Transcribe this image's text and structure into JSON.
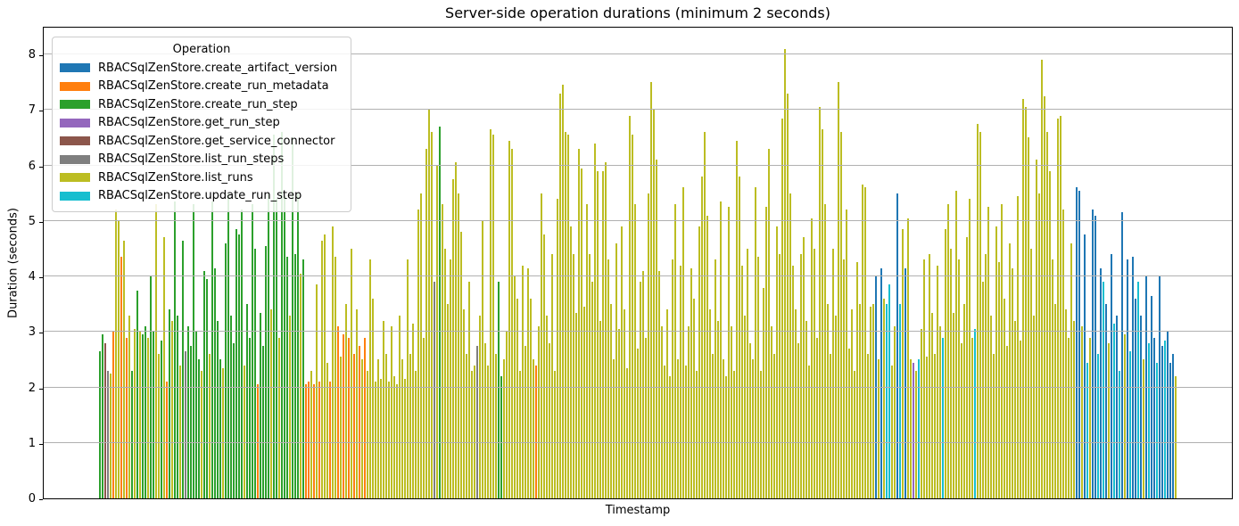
{
  "title": "Server-side operation durations (minimum 2 seconds)",
  "axes": {
    "xlabel": "Timestamp",
    "ylabel": "Duration (seconds)",
    "yticks": [
      "0",
      "1",
      "2",
      "3",
      "4",
      "5",
      "6",
      "7",
      "8"
    ]
  },
  "legend": {
    "title": "Operation",
    "entries": [
      {
        "label": "RBACSqlZenStore.create_artifact_version",
        "color": "#1f77b4"
      },
      {
        "label": "RBACSqlZenStore.create_run_metadata",
        "color": "#ff7f0e"
      },
      {
        "label": "RBACSqlZenStore.create_run_step",
        "color": "#2ca02c"
      },
      {
        "label": "RBACSqlZenStore.get_run_step",
        "color": "#9467bd"
      },
      {
        "label": "RBACSqlZenStore.get_service_connector",
        "color": "#8c564b"
      },
      {
        "label": "RBACSqlZenStore.list_run_steps",
        "color": "#7f7f7f"
      },
      {
        "label": "RBACSqlZenStore.list_runs",
        "color": "#bcbd22"
      },
      {
        "label": "RBACSqlZenStore.update_run_step",
        "color": "#17becf"
      }
    ]
  },
  "chart_data": {
    "type": "bar",
    "title": "Server-side operation durations (minimum 2 seconds)",
    "xlabel": "Timestamp",
    "ylabel": "Duration (seconds)",
    "ylim": [
      0,
      8.5
    ],
    "grid": "horizontal, drawn above bars",
    "legend_position": "upper left",
    "x_tick_labels": "none visible (timestamps hidden)",
    "operations": [
      "RBACSqlZenStore.create_artifact_version",
      "RBACSqlZenStore.create_run_metadata",
      "RBACSqlZenStore.create_run_step",
      "RBACSqlZenStore.get_run_step",
      "RBACSqlZenStore.get_service_connector",
      "RBACSqlZenStore.list_run_steps",
      "RBACSqlZenStore.list_runs",
      "RBACSqlZenStore.update_run_step"
    ],
    "colors": [
      "#1f77b4",
      "#ff7f0e",
      "#2ca02c",
      "#9467bd",
      "#8c564b",
      "#7f7f7f",
      "#bcbd22",
      "#17becf"
    ],
    "bars_format": "[operation_index, duration_seconds] per bar, left to right (durations estimated from pixels)",
    "bars": [
      [
        2,
        2.65
      ],
      [
        2,
        2.95
      ],
      [
        4,
        2.8
      ],
      [
        5,
        2.3
      ],
      [
        6,
        2.25
      ],
      [
        1,
        3.0
      ],
      [
        6,
        5.2
      ],
      [
        6,
        5.0
      ],
      [
        1,
        4.35
      ],
      [
        6,
        4.65
      ],
      [
        1,
        2.9
      ],
      [
        6,
        3.3
      ],
      [
        2,
        2.3
      ],
      [
        6,
        3.05
      ],
      [
        2,
        3.75
      ],
      [
        6,
        3.0
      ],
      [
        2,
        2.95
      ],
      [
        2,
        3.1
      ],
      [
        6,
        2.9
      ],
      [
        2,
        4.0
      ],
      [
        2,
        3.0
      ],
      [
        6,
        5.3
      ],
      [
        6,
        2.6
      ],
      [
        2,
        2.85
      ],
      [
        6,
        4.7
      ],
      [
        1,
        2.1
      ],
      [
        2,
        3.4
      ],
      [
        6,
        3.2
      ],
      [
        2,
        5.35
      ],
      [
        2,
        3.3
      ],
      [
        6,
        2.4
      ],
      [
        2,
        4.65
      ],
      [
        5,
        2.65
      ],
      [
        2,
        3.1
      ],
      [
        2,
        2.75
      ],
      [
        2,
        5.3
      ],
      [
        2,
        3.0
      ],
      [
        2,
        2.5
      ],
      [
        6,
        2.3
      ],
      [
        2,
        4.1
      ],
      [
        2,
        3.95
      ],
      [
        6,
        2.6
      ],
      [
        2,
        5.35
      ],
      [
        2,
        4.15
      ],
      [
        2,
        3.2
      ],
      [
        2,
        2.5
      ],
      [
        6,
        2.35
      ],
      [
        2,
        4.6
      ],
      [
        2,
        5.5
      ],
      [
        2,
        3.3
      ],
      [
        2,
        2.8
      ],
      [
        2,
        4.85
      ],
      [
        2,
        4.75
      ],
      [
        2,
        5.2
      ],
      [
        6,
        2.4
      ],
      [
        2,
        3.5
      ],
      [
        2,
        2.9
      ],
      [
        2,
        5.3
      ],
      [
        2,
        4.5
      ],
      [
        1,
        2.05
      ],
      [
        2,
        3.35
      ],
      [
        2,
        2.75
      ],
      [
        2,
        4.55
      ],
      [
        2,
        5.5
      ],
      [
        6,
        3.4
      ],
      [
        2,
        6.55
      ],
      [
        2,
        5.4
      ],
      [
        6,
        2.9
      ],
      [
        2,
        6.6
      ],
      [
        2,
        5.45
      ],
      [
        2,
        4.35
      ],
      [
        6,
        3.3
      ],
      [
        2,
        6.5
      ],
      [
        2,
        4.4
      ],
      [
        2,
        5.5
      ],
      [
        6,
        4.05
      ],
      [
        2,
        4.3
      ],
      [
        1,
        2.05
      ],
      [
        1,
        2.1
      ],
      [
        6,
        2.3
      ],
      [
        1,
        2.05
      ],
      [
        6,
        3.85
      ],
      [
        1,
        2.1
      ],
      [
        6,
        4.65
      ],
      [
        6,
        4.75
      ],
      [
        6,
        2.45
      ],
      [
        1,
        2.1
      ],
      [
        6,
        4.9
      ],
      [
        6,
        4.35
      ],
      [
        1,
        3.1
      ],
      [
        6,
        2.55
      ],
      [
        1,
        2.95
      ],
      [
        6,
        3.5
      ],
      [
        1,
        2.9
      ],
      [
        6,
        4.5
      ],
      [
        1,
        2.6
      ],
      [
        6,
        3.4
      ],
      [
        1,
        2.75
      ],
      [
        6,
        2.5
      ],
      [
        1,
        2.9
      ],
      [
        6,
        2.3
      ],
      [
        6,
        4.3
      ],
      [
        6,
        3.6
      ],
      [
        6,
        2.1
      ],
      [
        6,
        2.5
      ],
      [
        6,
        2.15
      ],
      [
        6,
        3.2
      ],
      [
        6,
        2.6
      ],
      [
        6,
        2.1
      ],
      [
        6,
        3.1
      ],
      [
        6,
        2.2
      ],
      [
        6,
        2.05
      ],
      [
        6,
        3.3
      ],
      [
        6,
        2.5
      ],
      [
        6,
        2.15
      ],
      [
        6,
        4.3
      ],
      [
        6,
        2.6
      ],
      [
        6,
        3.15
      ],
      [
        6,
        2.3
      ],
      [
        6,
        5.2
      ],
      [
        6,
        5.5
      ],
      [
        6,
        2.9
      ],
      [
        6,
        6.3
      ],
      [
        6,
        7.0
      ],
      [
        6,
        6.6
      ],
      [
        5,
        3.9
      ],
      [
        6,
        6.0
      ],
      [
        2,
        6.7
      ],
      [
        6,
        5.3
      ],
      [
        6,
        4.5
      ],
      [
        6,
        3.5
      ],
      [
        6,
        4.3
      ],
      [
        6,
        5.75
      ],
      [
        6,
        6.05
      ],
      [
        6,
        5.5
      ],
      [
        6,
        4.8
      ],
      [
        6,
        3.4
      ],
      [
        6,
        2.6
      ],
      [
        6,
        3.9
      ],
      [
        6,
        2.3
      ],
      [
        6,
        2.4
      ],
      [
        5,
        2.75
      ],
      [
        6,
        3.3
      ],
      [
        6,
        5.0
      ],
      [
        6,
        2.8
      ],
      [
        6,
        2.4
      ],
      [
        6,
        6.65
      ],
      [
        6,
        6.55
      ],
      [
        6,
        2.6
      ],
      [
        2,
        3.9
      ],
      [
        2,
        2.2
      ],
      [
        6,
        2.5
      ],
      [
        6,
        3.0
      ],
      [
        6,
        6.45
      ],
      [
        6,
        6.3
      ],
      [
        6,
        4.0
      ],
      [
        6,
        3.6
      ],
      [
        6,
        2.3
      ],
      [
        6,
        4.2
      ],
      [
        6,
        2.75
      ],
      [
        6,
        4.15
      ],
      [
        6,
        3.6
      ],
      [
        6,
        2.5
      ],
      [
        1,
        2.4
      ],
      [
        6,
        3.1
      ],
      [
        6,
        5.5
      ],
      [
        6,
        4.75
      ],
      [
        6,
        3.3
      ],
      [
        6,
        2.8
      ],
      [
        6,
        4.4
      ],
      [
        6,
        2.3
      ],
      [
        6,
        5.4
      ],
      [
        6,
        7.3
      ],
      [
        6,
        7.45
      ],
      [
        6,
        6.6
      ],
      [
        6,
        6.55
      ],
      [
        6,
        4.9
      ],
      [
        6,
        4.4
      ],
      [
        6,
        3.35
      ],
      [
        6,
        6.3
      ],
      [
        6,
        5.95
      ],
      [
        6,
        3.45
      ],
      [
        6,
        5.3
      ],
      [
        6,
        4.4
      ],
      [
        6,
        3.9
      ],
      [
        6,
        6.4
      ],
      [
        6,
        5.9
      ],
      [
        6,
        3.2
      ],
      [
        6,
        5.9
      ],
      [
        6,
        6.05
      ],
      [
        6,
        4.3
      ],
      [
        6,
        3.5
      ],
      [
        6,
        2.5
      ],
      [
        6,
        4.6
      ],
      [
        6,
        3.05
      ],
      [
        6,
        4.9
      ],
      [
        6,
        3.4
      ],
      [
        6,
        2.35
      ],
      [
        6,
        6.9
      ],
      [
        6,
        6.55
      ],
      [
        6,
        5.3
      ],
      [
        6,
        2.7
      ],
      [
        6,
        3.9
      ],
      [
        6,
        4.1
      ],
      [
        6,
        2.9
      ],
      [
        6,
        5.5
      ],
      [
        6,
        7.5
      ],
      [
        6,
        7.0
      ],
      [
        6,
        6.1
      ],
      [
        6,
        4.1
      ],
      [
        6,
        3.1
      ],
      [
        6,
        2.4
      ],
      [
        6,
        3.4
      ],
      [
        6,
        2.2
      ],
      [
        6,
        4.3
      ],
      [
        6,
        5.3
      ],
      [
        6,
        2.5
      ],
      [
        6,
        4.2
      ],
      [
        6,
        5.6
      ],
      [
        6,
        2.4
      ],
      [
        6,
        3.1
      ],
      [
        6,
        4.15
      ],
      [
        6,
        3.6
      ],
      [
        6,
        2.3
      ],
      [
        6,
        4.9
      ],
      [
        6,
        5.8
      ],
      [
        6,
        6.6
      ],
      [
        6,
        5.1
      ],
      [
        6,
        3.4
      ],
      [
        6,
        2.6
      ],
      [
        6,
        4.3
      ],
      [
        6,
        3.2
      ],
      [
        6,
        5.35
      ],
      [
        6,
        2.5
      ],
      [
        6,
        2.2
      ],
      [
        6,
        5.25
      ],
      [
        6,
        3.1
      ],
      [
        6,
        2.3
      ],
      [
        6,
        6.45
      ],
      [
        6,
        5.8
      ],
      [
        6,
        4.2
      ],
      [
        6,
        3.3
      ],
      [
        6,
        4.5
      ],
      [
        6,
        2.8
      ],
      [
        6,
        2.5
      ],
      [
        6,
        5.6
      ],
      [
        6,
        4.35
      ],
      [
        6,
        2.3
      ],
      [
        6,
        3.8
      ],
      [
        6,
        5.25
      ],
      [
        6,
        6.3
      ],
      [
        6,
        3.1
      ],
      [
        6,
        2.6
      ],
      [
        6,
        4.9
      ],
      [
        6,
        4.4
      ],
      [
        6,
        6.85
      ],
      [
        6,
        8.1
      ],
      [
        6,
        7.3
      ],
      [
        6,
        5.5
      ],
      [
        6,
        4.2
      ],
      [
        6,
        3.4
      ],
      [
        6,
        2.8
      ],
      [
        6,
        4.4
      ],
      [
        6,
        4.7
      ],
      [
        6,
        3.2
      ],
      [
        6,
        2.4
      ],
      [
        6,
        5.05
      ],
      [
        6,
        4.5
      ],
      [
        6,
        2.9
      ],
      [
        6,
        7.05
      ],
      [
        6,
        6.65
      ],
      [
        6,
        5.3
      ],
      [
        6,
        3.5
      ],
      [
        6,
        2.6
      ],
      [
        6,
        4.5
      ],
      [
        6,
        3.3
      ],
      [
        6,
        7.5
      ],
      [
        6,
        6.6
      ],
      [
        6,
        4.3
      ],
      [
        6,
        5.2
      ],
      [
        6,
        2.7
      ],
      [
        6,
        3.4
      ],
      [
        6,
        2.3
      ],
      [
        6,
        4.25
      ],
      [
        6,
        3.5
      ],
      [
        6,
        5.65
      ],
      [
        6,
        5.6
      ],
      [
        6,
        2.6
      ],
      [
        6,
        3.45
      ],
      [
        6,
        3.5
      ],
      [
        0,
        4.0
      ],
      [
        6,
        2.5
      ],
      [
        0,
        4.15
      ],
      [
        6,
        3.6
      ],
      [
        7,
        3.5
      ],
      [
        7,
        3.85
      ],
      [
        6,
        2.4
      ],
      [
        6,
        3.1
      ],
      [
        0,
        5.5
      ],
      [
        7,
        3.5
      ],
      [
        6,
        4.85
      ],
      [
        0,
        4.15
      ],
      [
        6,
        5.05
      ],
      [
        6,
        2.5
      ],
      [
        3,
        2.45
      ],
      [
        6,
        2.3
      ],
      [
        7,
        2.5
      ],
      [
        6,
        3.05
      ],
      [
        6,
        4.3
      ],
      [
        6,
        2.55
      ],
      [
        6,
        4.4
      ],
      [
        6,
        3.35
      ],
      [
        6,
        2.6
      ],
      [
        6,
        4.2
      ],
      [
        6,
        3.1
      ],
      [
        7,
        2.9
      ],
      [
        6,
        4.85
      ],
      [
        6,
        5.3
      ],
      [
        6,
        4.5
      ],
      [
        6,
        3.35
      ],
      [
        6,
        5.55
      ],
      [
        6,
        4.3
      ],
      [
        6,
        2.8
      ],
      [
        6,
        3.5
      ],
      [
        6,
        4.7
      ],
      [
        6,
        5.4
      ],
      [
        6,
        2.9
      ],
      [
        7,
        3.05
      ],
      [
        6,
        6.75
      ],
      [
        6,
        6.6
      ],
      [
        6,
        3.9
      ],
      [
        6,
        4.4
      ],
      [
        6,
        5.25
      ],
      [
        6,
        3.3
      ],
      [
        6,
        2.6
      ],
      [
        6,
        4.9
      ],
      [
        6,
        4.25
      ],
      [
        6,
        5.3
      ],
      [
        6,
        3.6
      ],
      [
        6,
        2.75
      ],
      [
        6,
        4.6
      ],
      [
        6,
        4.15
      ],
      [
        6,
        3.2
      ],
      [
        6,
        5.45
      ],
      [
        6,
        2.85
      ],
      [
        6,
        7.2
      ],
      [
        6,
        7.05
      ],
      [
        6,
        6.5
      ],
      [
        6,
        4.5
      ],
      [
        6,
        3.3
      ],
      [
        6,
        6.1
      ],
      [
        6,
        5.5
      ],
      [
        6,
        7.9
      ],
      [
        6,
        7.25
      ],
      [
        6,
        6.6
      ],
      [
        6,
        5.9
      ],
      [
        6,
        4.3
      ],
      [
        6,
        3.5
      ],
      [
        6,
        6.85
      ],
      [
        6,
        6.9
      ],
      [
        6,
        5.2
      ],
      [
        6,
        3.4
      ],
      [
        6,
        2.9
      ],
      [
        6,
        4.6
      ],
      [
        6,
        3.2
      ],
      [
        0,
        5.6
      ],
      [
        0,
        5.55
      ],
      [
        6,
        3.1
      ],
      [
        0,
        4.75
      ],
      [
        7,
        2.45
      ],
      [
        6,
        2.9
      ],
      [
        0,
        5.2
      ],
      [
        0,
        5.1
      ],
      [
        7,
        2.6
      ],
      [
        0,
        4.15
      ],
      [
        7,
        3.9
      ],
      [
        0,
        3.5
      ],
      [
        6,
        2.8
      ],
      [
        0,
        4.4
      ],
      [
        7,
        3.15
      ],
      [
        0,
        3.3
      ],
      [
        7,
        2.3
      ],
      [
        0,
        5.15
      ],
      [
        6,
        2.95
      ],
      [
        0,
        4.3
      ],
      [
        7,
        2.65
      ],
      [
        0,
        4.35
      ],
      [
        0,
        3.6
      ],
      [
        7,
        3.9
      ],
      [
        0,
        3.3
      ],
      [
        6,
        2.5
      ],
      [
        0,
        4.0
      ],
      [
        7,
        2.8
      ],
      [
        0,
        3.65
      ],
      [
        0,
        2.9
      ],
      [
        7,
        2.45
      ],
      [
        0,
        4.0
      ],
      [
        0,
        2.75
      ],
      [
        7,
        2.85
      ],
      [
        0,
        3.0
      ],
      [
        0,
        2.45
      ],
      [
        0,
        2.6
      ],
      [
        6,
        2.2
      ]
    ]
  }
}
